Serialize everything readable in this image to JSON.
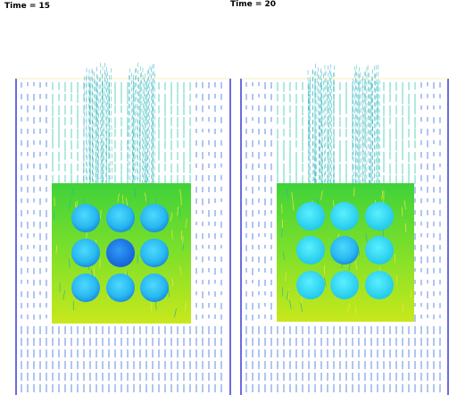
{
  "panels": [
    {
      "label": "Time = 15"
    },
    {
      "label": "Time = 20"
    }
  ]
}
